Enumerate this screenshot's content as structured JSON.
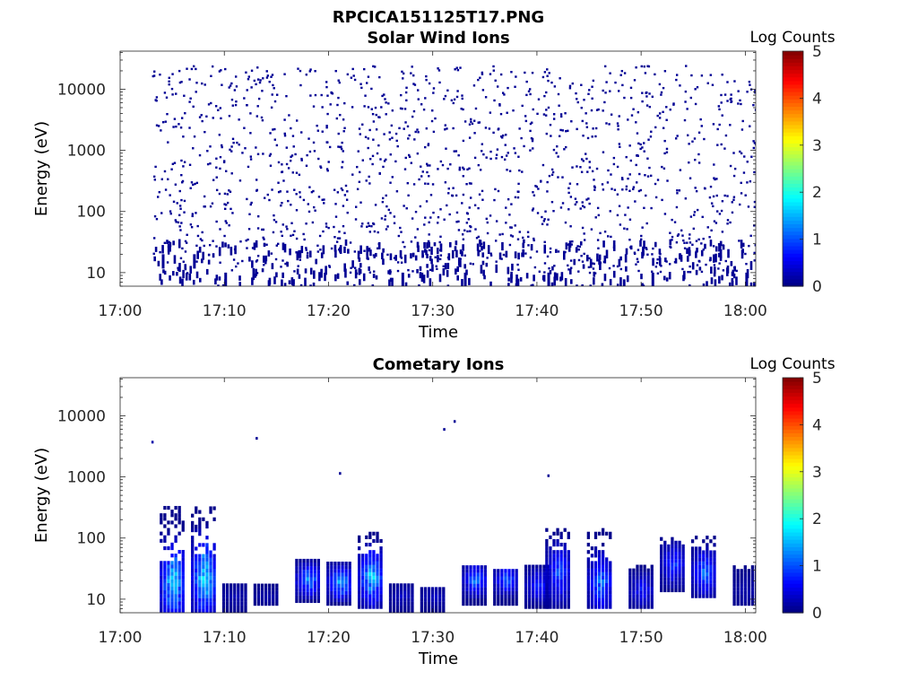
{
  "figure": {
    "suptitle": "RPCICA151125T17.PNG"
  },
  "colormap": "jet",
  "chart_data": [
    {
      "type": "heatmap",
      "title": "Solar Wind Ions",
      "xlabel": "Time",
      "ylabel": "Energy (eV)",
      "xlim": [
        "17:00",
        "18:01"
      ],
      "x_ticks": [
        "17:00",
        "17:10",
        "17:20",
        "17:30",
        "17:40",
        "17:50",
        "18:00"
      ],
      "ylim": [
        6,
        42000
      ],
      "yscale": "log",
      "y_ticks": [
        10,
        100,
        1000,
        10000
      ],
      "y_tick_labels": [
        "10",
        "100",
        "1000",
        "10000"
      ],
      "colorbar": {
        "label": "Log Counts",
        "range": [
          0,
          5
        ],
        "ticks": [
          "0",
          "1",
          "2",
          "3",
          "4",
          "5"
        ]
      },
      "data_start": "17:03",
      "description_values": "sparse single counts (log counts ~0) scattered between ~10 eV and ~30000 eV after 17:03; denser low-energy (8-40 eV) columns",
      "background_level": 0.1,
      "events": [
        {
          "t": "17:04",
          "e": 20,
          "v": 0.1
        },
        {
          "t": "17:07",
          "e": 20,
          "v": 0.1
        },
        {
          "t": "17:10",
          "e": 10,
          "v": 0.1
        },
        {
          "t": "17:27",
          "e": 10,
          "v": 0.1
        },
        {
          "t": "17:33",
          "e": 10,
          "v": 0.1
        },
        {
          "t": "17:41",
          "e": 10,
          "v": 0.1
        },
        {
          "t": "17:51",
          "e": 10,
          "v": 0.1
        },
        {
          "t": "18:00",
          "e": 10,
          "v": 0.1
        }
      ]
    },
    {
      "type": "heatmap",
      "title": "Cometary Ions",
      "xlabel": "Time",
      "ylabel": "Energy (eV)",
      "xlim": [
        "17:00",
        "18:01"
      ],
      "x_ticks": [
        "17:00",
        "17:10",
        "17:20",
        "17:30",
        "17:40",
        "17:50",
        "18:00"
      ],
      "ylim": [
        6,
        42000
      ],
      "yscale": "log",
      "y_ticks": [
        10,
        100,
        1000,
        10000
      ],
      "y_tick_labels": [
        "10",
        "100",
        "1000",
        "10000"
      ],
      "colorbar": {
        "label": "Log Counts",
        "range": [
          0,
          5
        ],
        "ticks": [
          "0",
          "1",
          "2",
          "3",
          "4",
          "5"
        ]
      },
      "bursts": [
        {
          "t": "17:05",
          "emin": 7,
          "emax": 380,
          "peak_e": 20,
          "peak_v": 1.8
        },
        {
          "t": "17:08",
          "emin": 6,
          "emax": 350,
          "peak_e": 25,
          "peak_v": 1.9
        },
        {
          "t": "17:11",
          "emin": 6,
          "emax": 20,
          "peak_e": 12,
          "peak_v": 0.2
        },
        {
          "t": "17:14",
          "emin": 9,
          "emax": 20,
          "peak_e": 12,
          "peak_v": 0.2
        },
        {
          "t": "17:18",
          "emin": 10,
          "emax": 50,
          "peak_e": 22,
          "peak_v": 1.4
        },
        {
          "t": "17:21",
          "emin": 9,
          "emax": 45,
          "peak_e": 20,
          "peak_v": 1.6
        },
        {
          "t": "17:24",
          "emin": 8,
          "emax": 130,
          "peak_e": 25,
          "peak_v": 1.7
        },
        {
          "t": "17:27",
          "emin": 6,
          "emax": 20,
          "peak_e": 12,
          "peak_v": 0.3
        },
        {
          "t": "17:30",
          "emin": 6,
          "emax": 18,
          "peak_e": 12,
          "peak_v": 0.3
        },
        {
          "t": "17:34",
          "emin": 9,
          "emax": 40,
          "peak_e": 22,
          "peak_v": 1.2
        },
        {
          "t": "17:37",
          "emin": 9,
          "emax": 35,
          "peak_e": 22,
          "peak_v": 1.1
        },
        {
          "t": "17:40",
          "emin": 8,
          "emax": 40,
          "peak_e": 18,
          "peak_v": 0.8
        },
        {
          "t": "17:42",
          "emin": 8,
          "emax": 150,
          "peak_e": 30,
          "peak_v": 1.0
        },
        {
          "t": "17:46",
          "emin": 8,
          "emax": 150,
          "peak_e": 20,
          "peak_v": 1.2
        },
        {
          "t": "17:50",
          "emin": 8,
          "emax": 40,
          "peak_e": 15,
          "peak_v": 0.7
        },
        {
          "t": "17:53",
          "emin": 15,
          "emax": 110,
          "peak_e": 40,
          "peak_v": 0.9
        },
        {
          "t": "17:56",
          "emin": 12,
          "emax": 110,
          "peak_e": 30,
          "peak_v": 1.2
        },
        {
          "t": "18:00",
          "emin": 9,
          "emax": 40,
          "peak_e": 15,
          "peak_v": 0.2
        }
      ],
      "isolated": [
        {
          "t": "17:03",
          "e": 3900,
          "v": 0.2
        },
        {
          "t": "17:13",
          "e": 4500,
          "v": 0.1
        },
        {
          "t": "17:31",
          "e": 6300,
          "v": 0.1
        },
        {
          "t": "17:32",
          "e": 8500,
          "v": 0.1
        },
        {
          "t": "17:21",
          "e": 1200,
          "v": 0.1
        },
        {
          "t": "17:41",
          "e": 1100,
          "v": 0.1
        }
      ]
    }
  ]
}
